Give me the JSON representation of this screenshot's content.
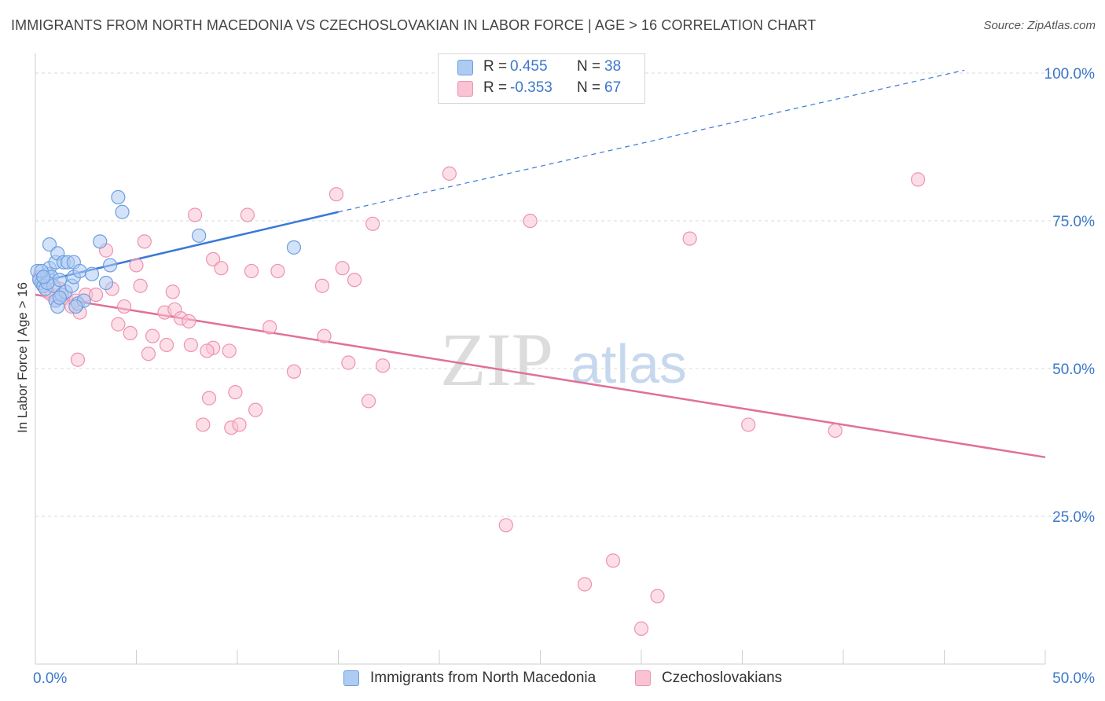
{
  "title": "IMMIGRANTS FROM NORTH MACEDONIA VS CZECHOSLOVAKIAN IN LABOR FORCE | AGE > 16 CORRELATION CHART",
  "source": "Source: ZipAtlas.com",
  "watermark": {
    "zip": "ZIP",
    "atlas": "atlas"
  },
  "legend": {
    "r_label": "R =",
    "n_label": "N =",
    "rows": [
      {
        "r": "0.455",
        "n": "38",
        "fill": "#aecbf2",
        "stroke": "#6b9fe0"
      },
      {
        "r": "-0.353",
        "n": "67",
        "fill": "#f9c3d4",
        "stroke": "#ee92b0"
      }
    ]
  },
  "chart_data": {
    "type": "scatter",
    "title": "IMMIGRANTS FROM NORTH MACEDONIA VS CZECHOSLOVAKIAN IN LABOR FORCE | AGE > 16 CORRELATION CHART",
    "xlabel": "",
    "ylabel": "In Labor Force | Age > 16",
    "xlim": [
      0,
      50
    ],
    "ylim": [
      0,
      102
    ],
    "x_tick_labels": [
      "0.0%",
      "50.0%"
    ],
    "y_ticks": [
      25,
      50,
      75,
      100
    ],
    "y_tick_labels": [
      "25.0%",
      "50.0%",
      "75.0%",
      "100.0%"
    ],
    "grid": true,
    "legend_position": "top-center",
    "series": [
      {
        "name": "Immigrants from North Macedonia",
        "color": "#3b78d8",
        "fill": "#aecbf2",
        "points": [
          [
            0.1,
            66.5
          ],
          [
            0.2,
            65.0
          ],
          [
            0.3,
            64.5
          ],
          [
            0.4,
            64.0
          ],
          [
            0.5,
            63.5
          ],
          [
            0.6,
            66.0
          ],
          [
            0.7,
            67.0
          ],
          [
            0.8,
            65.5
          ],
          [
            0.9,
            64.0
          ],
          [
            0.7,
            71.0
          ],
          [
            1.0,
            68.0
          ],
          [
            1.1,
            69.5
          ],
          [
            1.2,
            65.0
          ],
          [
            1.0,
            61.5
          ],
          [
            1.1,
            60.5
          ],
          [
            1.3,
            62.5
          ],
          [
            1.4,
            68.0
          ],
          [
            1.5,
            63.0
          ],
          [
            1.6,
            68.0
          ],
          [
            1.8,
            64.0
          ],
          [
            1.9,
            65.5
          ],
          [
            1.9,
            68.0
          ],
          [
            2.2,
            66.5
          ],
          [
            2.1,
            61.0
          ],
          [
            2.4,
            61.5
          ],
          [
            2.8,
            66.0
          ],
          [
            3.2,
            71.5
          ],
          [
            3.7,
            67.5
          ],
          [
            3.5,
            64.5
          ],
          [
            4.1,
            79.0
          ],
          [
            4.3,
            76.5
          ],
          [
            8.1,
            72.5
          ],
          [
            12.8,
            70.5
          ],
          [
            0.3,
            66.5
          ],
          [
            0.6,
            64.5
          ],
          [
            1.2,
            62.0
          ],
          [
            2.0,
            60.5
          ],
          [
            0.4,
            65.5
          ]
        ],
        "trend": {
          "x": [
            0,
            15
          ],
          "y": [
            64.5,
            76.5
          ]
        },
        "trend_extension": {
          "x": [
            15,
            46
          ],
          "y": [
            76.5,
            100.5
          ]
        }
      },
      {
        "name": "Czechoslovakians",
        "color": "#e0709a",
        "fill": "#f9c3d4",
        "points": [
          [
            0.2,
            65.5
          ],
          [
            0.4,
            64.0
          ],
          [
            0.6,
            63.0
          ],
          [
            0.8,
            62.5
          ],
          [
            1.0,
            61.5
          ],
          [
            1.2,
            63.5
          ],
          [
            1.5,
            62.0
          ],
          [
            1.8,
            60.5
          ],
          [
            2.0,
            61.5
          ],
          [
            2.2,
            59.5
          ],
          [
            2.5,
            62.5
          ],
          [
            3.0,
            62.5
          ],
          [
            3.5,
            70.0
          ],
          [
            3.8,
            63.5
          ],
          [
            4.1,
            57.5
          ],
          [
            4.4,
            60.5
          ],
          [
            4.7,
            56.0
          ],
          [
            5.0,
            67.5
          ],
          [
            5.2,
            64.0
          ],
          [
            5.4,
            71.5
          ],
          [
            5.6,
            52.5
          ],
          [
            5.8,
            55.5
          ],
          [
            6.4,
            59.5
          ],
          [
            6.5,
            54.0
          ],
          [
            6.8,
            63.0
          ],
          [
            6.9,
            60.0
          ],
          [
            7.2,
            58.5
          ],
          [
            7.6,
            58.0
          ],
          [
            7.7,
            54.0
          ],
          [
            7.9,
            76.0
          ],
          [
            8.3,
            40.5
          ],
          [
            8.6,
            45.0
          ],
          [
            8.8,
            53.5
          ],
          [
            8.5,
            53.0
          ],
          [
            8.8,
            68.5
          ],
          [
            9.2,
            67.0
          ],
          [
            9.6,
            53.0
          ],
          [
            9.9,
            46.0
          ],
          [
            9.7,
            40.0
          ],
          [
            10.1,
            40.5
          ],
          [
            10.5,
            76.0
          ],
          [
            10.7,
            66.5
          ],
          [
            10.9,
            43.0
          ],
          [
            11.6,
            57.0
          ],
          [
            12.0,
            66.5
          ],
          [
            12.8,
            49.5
          ],
          [
            14.2,
            64.0
          ],
          [
            14.3,
            55.5
          ],
          [
            14.9,
            79.5
          ],
          [
            15.2,
            67.0
          ],
          [
            15.5,
            51.0
          ],
          [
            15.8,
            65.0
          ],
          [
            16.5,
            44.5
          ],
          [
            16.7,
            74.5
          ],
          [
            17.2,
            50.5
          ],
          [
            20.5,
            83.0
          ],
          [
            23.3,
            23.5
          ],
          [
            24.5,
            75.0
          ],
          [
            27.2,
            13.5
          ],
          [
            28.6,
            17.5
          ],
          [
            30.0,
            6.0
          ],
          [
            30.8,
            11.5
          ],
          [
            32.4,
            72.0
          ],
          [
            35.3,
            40.5
          ],
          [
            39.6,
            39.5
          ],
          [
            43.7,
            82.0
          ],
          [
            2.1,
            51.5
          ]
        ],
        "trend": {
          "x": [
            0,
            50
          ],
          "y": [
            62.5,
            35.0
          ]
        }
      }
    ]
  }
}
